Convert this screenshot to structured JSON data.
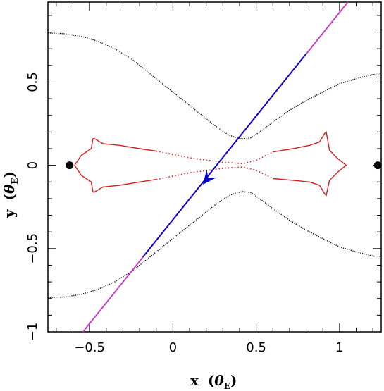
{
  "chart_data": {
    "type": "scatter",
    "title": "",
    "xlabel": {
      "main": "x",
      "paren_open": "(",
      "theta": "θ",
      "sub": "E",
      "paren_close": ")"
    },
    "ylabel": {
      "main": "y",
      "paren_open": "(",
      "theta": "θ",
      "sub": "E",
      "paren_close": ")"
    },
    "xlim": [
      -0.75,
      1.25
    ],
    "ylim": [
      -1.0,
      0.98
    ],
    "x_ticks": [
      {
        "value": -0.5,
        "label": "−0.5"
      },
      {
        "value": 0,
        "label": "0"
      },
      {
        "value": 0.5,
        "label": "0.5"
      },
      {
        "value": 1,
        "label": "1"
      }
    ],
    "y_ticks": [
      {
        "value": -1,
        "label": "−1"
      },
      {
        "value": -0.5,
        "label": "−0.5"
      },
      {
        "value": 0,
        "label": "0"
      },
      {
        "value": 0.5,
        "label": "0.5"
      }
    ],
    "minor_x_step": 0.1,
    "minor_y_step": 0.1,
    "lens_masses": [
      {
        "x": -0.62,
        "y": 0.0
      },
      {
        "x": 1.23,
        "y": 0.0
      }
    ],
    "critical_curve": {
      "color": "#000000",
      "upper": [
        [
          -0.75,
          0.795
        ],
        [
          -0.65,
          0.79
        ],
        [
          -0.55,
          0.775
        ],
        [
          -0.45,
          0.745
        ],
        [
          -0.35,
          0.7
        ],
        [
          -0.25,
          0.64
        ],
        [
          -0.15,
          0.56
        ],
        [
          -0.05,
          0.48
        ],
        [
          0.05,
          0.4
        ],
        [
          0.15,
          0.32
        ],
        [
          0.25,
          0.24
        ],
        [
          0.33,
          0.185
        ],
        [
          0.38,
          0.165
        ],
        [
          0.42,
          0.158
        ],
        [
          0.47,
          0.165
        ],
        [
          0.52,
          0.2
        ],
        [
          0.6,
          0.26
        ],
        [
          0.7,
          0.33
        ],
        [
          0.8,
          0.39
        ],
        [
          0.9,
          0.44
        ],
        [
          1.0,
          0.49
        ],
        [
          1.1,
          0.52
        ],
        [
          1.2,
          0.545
        ],
        [
          1.25,
          0.55
        ]
      ],
      "lower": [
        [
          -0.75,
          -0.795
        ],
        [
          -0.65,
          -0.79
        ],
        [
          -0.55,
          -0.775
        ],
        [
          -0.45,
          -0.745
        ],
        [
          -0.35,
          -0.7
        ],
        [
          -0.25,
          -0.64
        ],
        [
          -0.15,
          -0.56
        ],
        [
          -0.05,
          -0.48
        ],
        [
          0.05,
          -0.4
        ],
        [
          0.15,
          -0.32
        ],
        [
          0.25,
          -0.24
        ],
        [
          0.33,
          -0.185
        ],
        [
          0.38,
          -0.165
        ],
        [
          0.42,
          -0.158
        ],
        [
          0.47,
          -0.165
        ],
        [
          0.52,
          -0.2
        ],
        [
          0.6,
          -0.26
        ],
        [
          0.7,
          -0.33
        ],
        [
          0.8,
          -0.39
        ],
        [
          0.9,
          -0.44
        ],
        [
          1.0,
          -0.49
        ],
        [
          1.1,
          -0.52
        ],
        [
          1.2,
          -0.545
        ],
        [
          1.25,
          -0.55
        ]
      ]
    },
    "caustic": {
      "color": "#d42020",
      "left_solid": [
        [
          -0.1,
          0.085
        ],
        [
          -0.2,
          0.1
        ],
        [
          -0.32,
          0.12
        ],
        [
          -0.42,
          0.13
        ],
        [
          -0.47,
          0.16
        ],
        [
          -0.48,
          0.16
        ],
        [
          -0.48,
          0.16
        ],
        [
          -0.49,
          0.1
        ],
        [
          -0.55,
          0.06
        ],
        [
          -0.59,
          0.0
        ],
        [
          -0.55,
          -0.06
        ],
        [
          -0.49,
          -0.1
        ],
        [
          -0.48,
          -0.16
        ],
        [
          -0.47,
          -0.16
        ],
        [
          -0.42,
          -0.13
        ],
        [
          -0.32,
          -0.12
        ],
        [
          -0.2,
          -0.1
        ],
        [
          -0.1,
          -0.085
        ]
      ],
      "right_solid": [
        [
          0.6,
          0.08
        ],
        [
          0.72,
          0.1
        ],
        [
          0.82,
          0.12
        ],
        [
          0.88,
          0.14
        ],
        [
          0.91,
          0.19
        ],
        [
          0.92,
          0.2
        ],
        [
          0.94,
          0.09
        ],
        [
          0.99,
          0.04
        ],
        [
          1.04,
          0.0
        ],
        [
          0.99,
          -0.04
        ],
        [
          0.94,
          -0.09
        ],
        [
          0.92,
          -0.18
        ],
        [
          0.91,
          -0.17
        ],
        [
          0.88,
          -0.12
        ],
        [
          0.82,
          -0.1
        ],
        [
          0.72,
          -0.09
        ],
        [
          0.6,
          -0.08
        ]
      ],
      "dotted_top": [
        [
          -0.1,
          0.085
        ],
        [
          0.1,
          0.045
        ],
        [
          0.3,
          0.018
        ],
        [
          0.42,
          0.01
        ],
        [
          0.5,
          0.03
        ],
        [
          0.6,
          0.08
        ]
      ],
      "dotted_bottom": [
        [
          -0.1,
          -0.085
        ],
        [
          0.1,
          -0.045
        ],
        [
          0.3,
          -0.018
        ],
        [
          0.42,
          -0.01
        ],
        [
          0.5,
          -0.03
        ],
        [
          0.6,
          -0.08
        ]
      ]
    },
    "trajectory": {
      "direction_color": "#0000cc",
      "extension_color": "#cc33cc",
      "start": [
        -0.54,
        -1.0
      ],
      "end": [
        1.05,
        0.98
      ],
      "blue_segment": [
        [
          -0.18,
          -0.55
        ],
        [
          0.8,
          0.67
        ]
      ],
      "arrow_at": [
        0.18,
        -0.115
      ]
    }
  }
}
